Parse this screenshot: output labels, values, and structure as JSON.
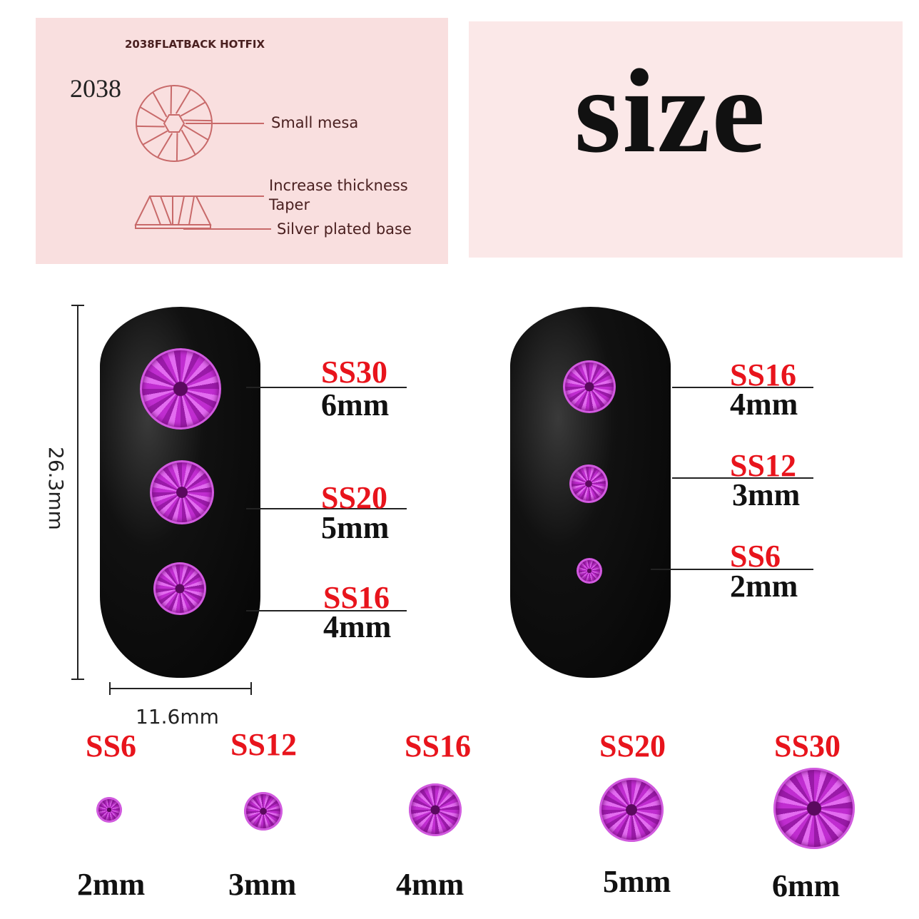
{
  "diagram": {
    "header": "2038FLATBACK HOTFIX",
    "model": "2038",
    "callouts": [
      "Small mesa",
      "Increase thickness",
      "Taper",
      "Silver plated base"
    ]
  },
  "title": "size",
  "nail_left": {
    "height": "26.3mm",
    "width": "11.6mm",
    "stones": [
      {
        "code": "SS30",
        "mm": "6mm"
      },
      {
        "code": "SS20",
        "mm": "5mm"
      },
      {
        "code": "SS16",
        "mm": "4mm"
      }
    ]
  },
  "nail_right": {
    "stones": [
      {
        "code": "SS16",
        "mm": "4mm"
      },
      {
        "code": "SS12",
        "mm": "3mm"
      },
      {
        "code": "SS6",
        "mm": "2mm"
      }
    ]
  },
  "row": [
    {
      "code": "SS6",
      "mm": "2mm"
    },
    {
      "code": "SS12",
      "mm": "3mm"
    },
    {
      "code": "SS16",
      "mm": "4mm"
    },
    {
      "code": "SS20",
      "mm": "5mm"
    },
    {
      "code": "SS30",
      "mm": "6mm"
    }
  ],
  "colors": {
    "label_red": "#e8141c",
    "stone": "#c02dd0",
    "panel": "#f9dfdf",
    "line": "#c86a6a"
  }
}
